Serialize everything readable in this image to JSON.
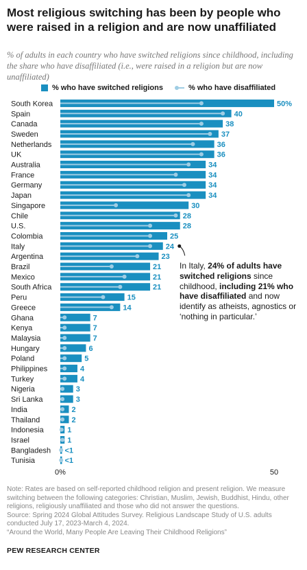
{
  "title": "Most religious switching has been by people who were raised in a religion and are now unaffiliated",
  "subtitle": "% of adults in each country who have switched religions since childhood, including the share who have disaffiliated (i.e., were raised in a religion but are now unaffiliated)",
  "legend": {
    "switched": "% who have switched religions",
    "disaffiliated": "% who have disaffiliated"
  },
  "colors": {
    "switched": "#1a8fc0",
    "disaffiliated": "#9fcde4",
    "value_label": "#1a8fc0"
  },
  "annotation": {
    "part1": "In Italy, ",
    "bold1": "24% of adults have switched religions",
    "part2": " since childhood, ",
    "bold2": "including 21% who have disaffiliated",
    "part3": " and now identify as atheists, agnostics or ‘nothing in particular.’"
  },
  "note": {
    "line1": "Note: Rates are based on self-reported childhood religion and present religion. We measure switching between the following categories: Christian, Muslim, Jewish, Buddhist, Hindu, other religions, religiously unaffiliated and those who did not answer the questions.",
    "line2": "Source: Spring 2024 Global Attitudes Survey. Religious Landscape Study of U.S. adults conducted July 17, 2023-March 4, 2024.",
    "line3": "“Around the World, Many People Are Leaving Their Childhood Religions”"
  },
  "brand": "PEW RESEARCH CENTER",
  "chart_data": {
    "type": "bar",
    "orientation": "horizontal",
    "xlim": [
      0,
      50
    ],
    "x_ticks": [
      "0%",
      "50"
    ],
    "categories": [
      "South Korea",
      "Spain",
      "Canada",
      "Sweden",
      "Netherlands",
      "UK",
      "Australia",
      "France",
      "Germany",
      "Japan",
      "Singapore",
      "Chile",
      "U.S.",
      "Colombia",
      "Italy",
      "Argentina",
      "Brazil",
      "Mexico",
      "South Africa",
      "Peru",
      "Greece",
      "Ghana",
      "Kenya",
      "Malaysia",
      "Hungary",
      "Poland",
      "Philippines",
      "Turkey",
      "Nigeria",
      "Sri Lanka",
      "India",
      "Thailand",
      "Indonesia",
      "Israel",
      "Bangladesh",
      "Tunisia"
    ],
    "value_labels": [
      "50%",
      "40",
      "38",
      "37",
      "36",
      "36",
      "34",
      "34",
      "34",
      "34",
      "30",
      "28",
      "28",
      "25",
      "24",
      "23",
      "21",
      "21",
      "21",
      "15",
      "14",
      "7",
      "7",
      "7",
      "6",
      "5",
      "4",
      "4",
      "3",
      "3",
      "2",
      "2",
      "1",
      "1",
      "<1",
      "<1"
    ],
    "series": [
      {
        "name": "% who have switched religions",
        "values": [
          50,
          40,
          38,
          37,
          36,
          36,
          34,
          34,
          34,
          34,
          30,
          28,
          28,
          25,
          24,
          23,
          21,
          21,
          21,
          15,
          14,
          7,
          7,
          7,
          6,
          5,
          4,
          4,
          3,
          3,
          2,
          2,
          1,
          1,
          0.4,
          0.4
        ]
      },
      {
        "name": "% who have disaffiliated",
        "values": [
          33,
          38,
          33,
          35,
          31,
          33,
          30,
          27,
          29,
          30,
          13,
          27,
          21,
          21,
          21,
          18,
          12,
          15,
          14,
          10,
          12,
          1,
          1,
          1,
          1,
          1,
          1,
          1,
          0.5,
          0.5,
          0.5,
          0.5,
          0.3,
          0.5,
          0.2,
          0.2
        ]
      }
    ]
  }
}
